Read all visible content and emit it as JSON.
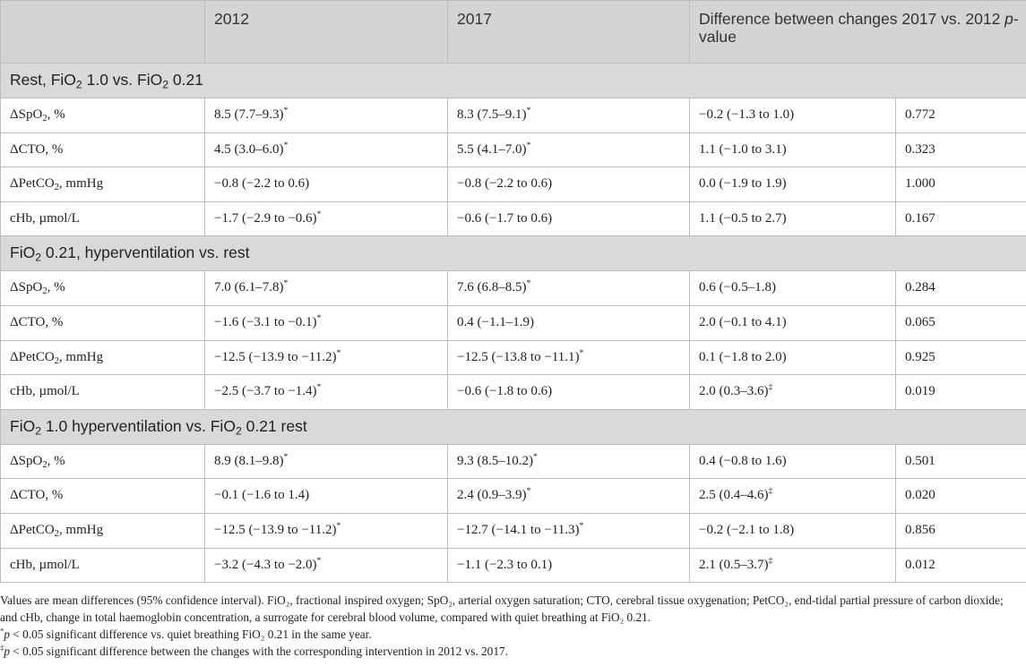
{
  "columns": [
    "",
    "2012",
    "2017",
    "Difference between changes 2017 vs. 2012 ",
    "p",
    "-value"
  ],
  "header": {
    "col1": "",
    "col2": "2012",
    "col3": "2017",
    "col4_text": "Difference between changes 2017 vs. 2012 ",
    "col4_italic": "p",
    "col4_tail": "-value"
  },
  "sections": [
    {
      "title": [
        "Rest, FiO",
        "2",
        " 1.0 vs. FiO",
        "2",
        " 0.21"
      ],
      "rows": [
        {
          "label": [
            "ΔSpO",
            "2",
            ", %"
          ],
          "v2012": "8.5 (7.7–9.3)",
          "m2012": "*",
          "v2017": "8.3 (7.5–9.1)",
          "m2017": "*",
          "diff": "−0.2 (−1.3 to 1.0)",
          "mdiff": "",
          "p": "0.772"
        },
        {
          "label": [
            "ΔCTO, %",
            "",
            ""
          ],
          "v2012": "4.5 (3.0–6.0)",
          "m2012": "*",
          "v2017": "5.5 (4.1–7.0)",
          "m2017": "*",
          "diff": "1.1 (−1.0 to 3.1)",
          "mdiff": "",
          "p": "0.323"
        },
        {
          "label": [
            "ΔPetCO",
            "2",
            ", mmHg"
          ],
          "v2012": "−0.8 (−2.2 to 0.6)",
          "m2012": "",
          "v2017": "−0.8 (−2.2 to 0.6)",
          "m2017": "",
          "diff": "0.0 (−1.9 to 1.9)",
          "mdiff": "",
          "p": "1.000"
        },
        {
          "label": [
            "cHb, µmol/L",
            "",
            ""
          ],
          "v2012": "−1.7 (−2.9 to −0.6)",
          "m2012": "*",
          "v2017": "−0.6 (−1.7 to 0.6)",
          "m2017": "",
          "diff": "1.1 (−0.5 to 2.7)",
          "mdiff": "",
          "p": "0.167"
        }
      ]
    },
    {
      "title": [
        "FiO",
        "2",
        " 0.21, hyperventilation vs. rest",
        "",
        ""
      ],
      "rows": [
        {
          "label": [
            "ΔSpO",
            "2",
            ", %"
          ],
          "v2012": "7.0 (6.1–7.8)",
          "m2012": "*",
          "v2017": "7.6 (6.8–8.5)",
          "m2017": "*",
          "diff": "0.6 (−0.5–1.8)",
          "mdiff": "",
          "p": "0.284"
        },
        {
          "label": [
            "ΔCTO, %",
            "",
            ""
          ],
          "v2012": "−1.6 (−3.1 to −0.1)",
          "m2012": "*",
          "v2017": "0.4 (−1.1–1.9)",
          "m2017": "",
          "diff": "2.0 (−0.1 to 4.1)",
          "mdiff": "",
          "p": "0.065"
        },
        {
          "label": [
            "ΔPetCO",
            "2",
            ", mmHg"
          ],
          "v2012": "−12.5 (−13.9 to −11.2)",
          "m2012": "*",
          "v2017": "−12.5 (−13.8 to −11.1)",
          "m2017": "*",
          "diff": "0.1 (−1.8 to 2.0)",
          "mdiff": "",
          "p": "0.925"
        },
        {
          "label": [
            "cHb, µmol/L",
            "",
            ""
          ],
          "v2012": "−2.5 (−3.7 to −1.4)",
          "m2012": "*",
          "v2017": "−0.6 (−1.8 to 0.6)",
          "m2017": "",
          "diff": "2.0 (0.3–3.6)",
          "mdiff": "‡",
          "p": "0.019"
        }
      ]
    },
    {
      "title": [
        "FiO",
        "2",
        " 1.0 hyperventilation vs. FiO",
        "2",
        " 0.21 rest"
      ],
      "rows": [
        {
          "label": [
            "ΔSpO",
            "2",
            ", %"
          ],
          "v2012": "8.9 (8.1–9.8)",
          "m2012": "*",
          "v2017": "9.3 (8.5–10.2)",
          "m2017": "*",
          "diff": "0.4 (−0.8 to 1.6)",
          "mdiff": "",
          "p": "0.501"
        },
        {
          "label": [
            "ΔCTO, %",
            "",
            ""
          ],
          "v2012": "−0.1 (−1.6 to 1.4)",
          "m2012": "",
          "v2017": "2.4 (0.9–3.9)",
          "m2017": "*",
          "diff": "2.5 (0.4–4.6)",
          "mdiff": "‡",
          "p": "0.020"
        },
        {
          "label": [
            "ΔPetCO",
            "2",
            ", mmHg"
          ],
          "v2012": "−12.5 (−13.9 to −11.2)",
          "m2012": "*",
          "v2017": "−12.7 (−14.1 to −11.3)",
          "m2017": "*",
          "diff": "−0.2 (−2.1 to 1.8)",
          "mdiff": "",
          "p": "0.856"
        },
        {
          "label": [
            "cHb, µmol/L",
            "",
            ""
          ],
          "v2012": "−3.2 (−4.3 to −2.0)",
          "m2012": "*",
          "v2017": "−1.1 (−2.3 to 0.1)",
          "m2017": "",
          "diff": "2.1 (0.5–3.7)",
          "mdiff": "‡",
          "p": "0.012"
        }
      ]
    }
  ],
  "footnotes": {
    "n1": "Values are mean differences (95% confidence interval). FiO₂, fractional inspired oxygen; SpO₂, arterial oxygen saturation; CTO, cerebral tissue oxygenation; PetCO₂, end-tidal partial pressure of carbon dioxide; and cHb, change in total haemoglobin concentration, a surrogate for cerebral blood volume, compared with quiet breathing at FiO₂ 0.21.",
    "n2_mark": "*",
    "n2_p": "p",
    "n2": " < 0.05 significant difference vs. quiet breathing FiO₂ 0.21 in the same year.",
    "n3_mark": "‡",
    "n3_p": "p",
    "n3": " < 0.05 significant difference between the changes with the corresponding intervention in 2012 vs. 2017."
  }
}
